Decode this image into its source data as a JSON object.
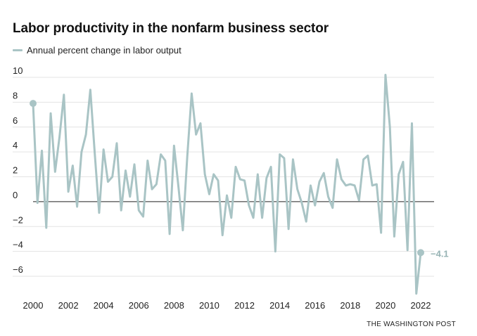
{
  "chart_data": {
    "type": "line",
    "title": "Labor productivity in the nonfarm business sector",
    "xlabel": "",
    "ylabel": "",
    "legend": "top-left",
    "grid": true,
    "series": [
      {
        "name": "Annual percent change in labor output",
        "color": "#a9c4c5",
        "points": [
          [
            2000.0,
            7.9
          ],
          [
            2000.25,
            -0.1
          ],
          [
            2000.5,
            4.1
          ],
          [
            2000.75,
            -2.1
          ],
          [
            2001.0,
            7.1
          ],
          [
            2001.25,
            2.4
          ],
          [
            2001.5,
            5.2
          ],
          [
            2001.75,
            8.6
          ],
          [
            2002.0,
            0.8
          ],
          [
            2002.25,
            2.9
          ],
          [
            2002.5,
            -0.4
          ],
          [
            2002.75,
            4.0
          ],
          [
            2003.0,
            5.4
          ],
          [
            2003.25,
            9.0
          ],
          [
            2003.5,
            3.9
          ],
          [
            2003.75,
            -0.9
          ],
          [
            2004.0,
            4.2
          ],
          [
            2004.25,
            1.6
          ],
          [
            2004.5,
            2.0
          ],
          [
            2004.75,
            4.7
          ],
          [
            2005.0,
            -0.7
          ],
          [
            2005.25,
            2.5
          ],
          [
            2005.5,
            0.4
          ],
          [
            2005.75,
            3.0
          ],
          [
            2006.0,
            -0.7
          ],
          [
            2006.25,
            -1.2
          ],
          [
            2006.5,
            3.3
          ],
          [
            2006.75,
            1.0
          ],
          [
            2007.0,
            1.4
          ],
          [
            2007.25,
            3.8
          ],
          [
            2007.5,
            3.3
          ],
          [
            2007.75,
            -2.6
          ],
          [
            2008.0,
            4.5
          ],
          [
            2008.25,
            1.2
          ],
          [
            2008.5,
            -2.3
          ],
          [
            2008.75,
            3.6
          ],
          [
            2009.0,
            8.7
          ],
          [
            2009.25,
            5.4
          ],
          [
            2009.5,
            6.3
          ],
          [
            2009.75,
            2.2
          ],
          [
            2010.0,
            0.6
          ],
          [
            2010.25,
            2.2
          ],
          [
            2010.5,
            1.7
          ],
          [
            2010.75,
            -2.7
          ],
          [
            2011.0,
            0.5
          ],
          [
            2011.25,
            -1.3
          ],
          [
            2011.5,
            2.8
          ],
          [
            2011.75,
            1.8
          ],
          [
            2012.0,
            1.7
          ],
          [
            2012.25,
            -0.3
          ],
          [
            2012.5,
            -1.3
          ],
          [
            2012.75,
            2.2
          ],
          [
            2013.0,
            -1.3
          ],
          [
            2013.25,
            1.9
          ],
          [
            2013.5,
            2.8
          ],
          [
            2013.75,
            -4.0
          ],
          [
            2014.0,
            3.8
          ],
          [
            2014.25,
            3.5
          ],
          [
            2014.5,
            -2.2
          ],
          [
            2014.75,
            3.4
          ],
          [
            2015.0,
            1.0
          ],
          [
            2015.25,
            -0.1
          ],
          [
            2015.5,
            -1.6
          ],
          [
            2015.75,
            1.3
          ],
          [
            2016.0,
            -0.3
          ],
          [
            2016.25,
            1.6
          ],
          [
            2016.5,
            2.3
          ],
          [
            2016.75,
            0.4
          ],
          [
            2017.0,
            -0.5
          ],
          [
            2017.25,
            3.4
          ],
          [
            2017.5,
            1.8
          ],
          [
            2017.75,
            1.3
          ],
          [
            2018.0,
            1.4
          ],
          [
            2018.25,
            1.3
          ],
          [
            2018.5,
            0.1
          ],
          [
            2018.75,
            3.4
          ],
          [
            2019.0,
            3.7
          ],
          [
            2019.25,
            1.3
          ],
          [
            2019.5,
            1.4
          ],
          [
            2019.75,
            -2.5
          ],
          [
            2020.0,
            10.2
          ],
          [
            2020.25,
            6.0
          ],
          [
            2020.5,
            -2.8
          ],
          [
            2020.75,
            2.2
          ],
          [
            2021.0,
            3.2
          ],
          [
            2021.25,
            -3.9
          ],
          [
            2021.5,
            6.3
          ],
          [
            2021.75,
            -7.4
          ],
          [
            2022.0,
            -4.1
          ]
        ]
      }
    ],
    "start_marker": [
      2000.0,
      7.9
    ],
    "end_marker": [
      2022.0,
      -4.1
    ],
    "end_label": "−4.1",
    "xlim": [
      2000,
      2022.4
    ],
    "ylim": [
      -7.5,
      10.5
    ],
    "x_ticks": [
      2000,
      2002,
      2004,
      2006,
      2008,
      2010,
      2012,
      2014,
      2016,
      2018,
      2020,
      2022
    ],
    "x_tick_labels": [
      "2000",
      "2002",
      "2004",
      "2006",
      "2008",
      "2010",
      "2012",
      "2014",
      "2016",
      "2018",
      "2020",
      "2022"
    ],
    "y_ticks": [
      10,
      8,
      6,
      4,
      2,
      0,
      -2,
      -4,
      -6
    ],
    "y_tick_labels": [
      "10",
      "8",
      "6",
      "4",
      "2",
      "0",
      "−2",
      "−4",
      "−6"
    ]
  },
  "legend_label": "Annual percent change in labor output",
  "source": "THE WASHINGTON POST"
}
